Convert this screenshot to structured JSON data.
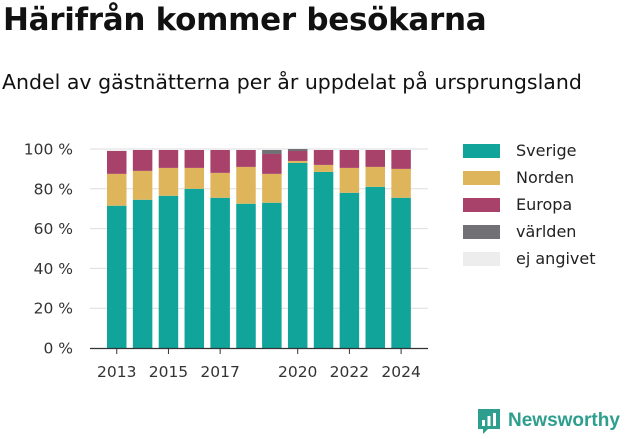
{
  "header": {
    "title": "Härifrån kommer besökarna",
    "subtitle": "Andel av gästnätterna per år uppdelat på ursprungsland"
  },
  "brand": {
    "name": "Newsworthy",
    "color": "#2e9e8f"
  },
  "chart_data": {
    "type": "bar",
    "stacked": true,
    "title": "Härifrån kommer besökarna",
    "subtitle": "Andel av gästnätterna per år uppdelat på ursprungsland",
    "xlabel": "",
    "ylabel": "",
    "ylim": [
      0,
      100
    ],
    "y_ticks": [
      "0 %",
      "20 %",
      "40 %",
      "60 %",
      "80 %",
      "100 %"
    ],
    "x_tick_labels": [
      "2013",
      "2015",
      "2017",
      "2020",
      "2022",
      "2024"
    ],
    "grid": true,
    "legend_position": "right",
    "categories": [
      "2013",
      "2014",
      "2015",
      "2016",
      "2017",
      "2018",
      "2019",
      "2020",
      "2021",
      "2022",
      "2023",
      "2024"
    ],
    "series": [
      {
        "name": "Sverige",
        "color": "#10a49a",
        "values": [
          71.5,
          74.5,
          76.5,
          80,
          75.5,
          72.5,
          73,
          93,
          88.5,
          78,
          81,
          75.5
        ]
      },
      {
        "name": "Norden",
        "color": "#dfb55c",
        "values": [
          16,
          14.5,
          14,
          10.5,
          12.5,
          18.5,
          14.5,
          1,
          3.5,
          12.5,
          10,
          14.5
        ]
      },
      {
        "name": "Europa",
        "color": "#a8426a",
        "values": [
          11.5,
          10.5,
          9,
          9,
          11.5,
          8.5,
          10,
          5,
          7.5,
          9,
          8.5,
          9.5
        ]
      },
      {
        "name": "världen",
        "color": "#707075",
        "values": [
          0,
          0,
          0,
          0,
          0,
          0,
          2,
          1,
          0,
          0,
          0,
          0
        ]
      },
      {
        "name": "ej angivet",
        "color": "#ededed",
        "values": [
          1,
          0.5,
          0.5,
          0.5,
          0.5,
          0.5,
          0.5,
          0,
          0.5,
          0.5,
          0.5,
          0.5
        ]
      }
    ]
  }
}
